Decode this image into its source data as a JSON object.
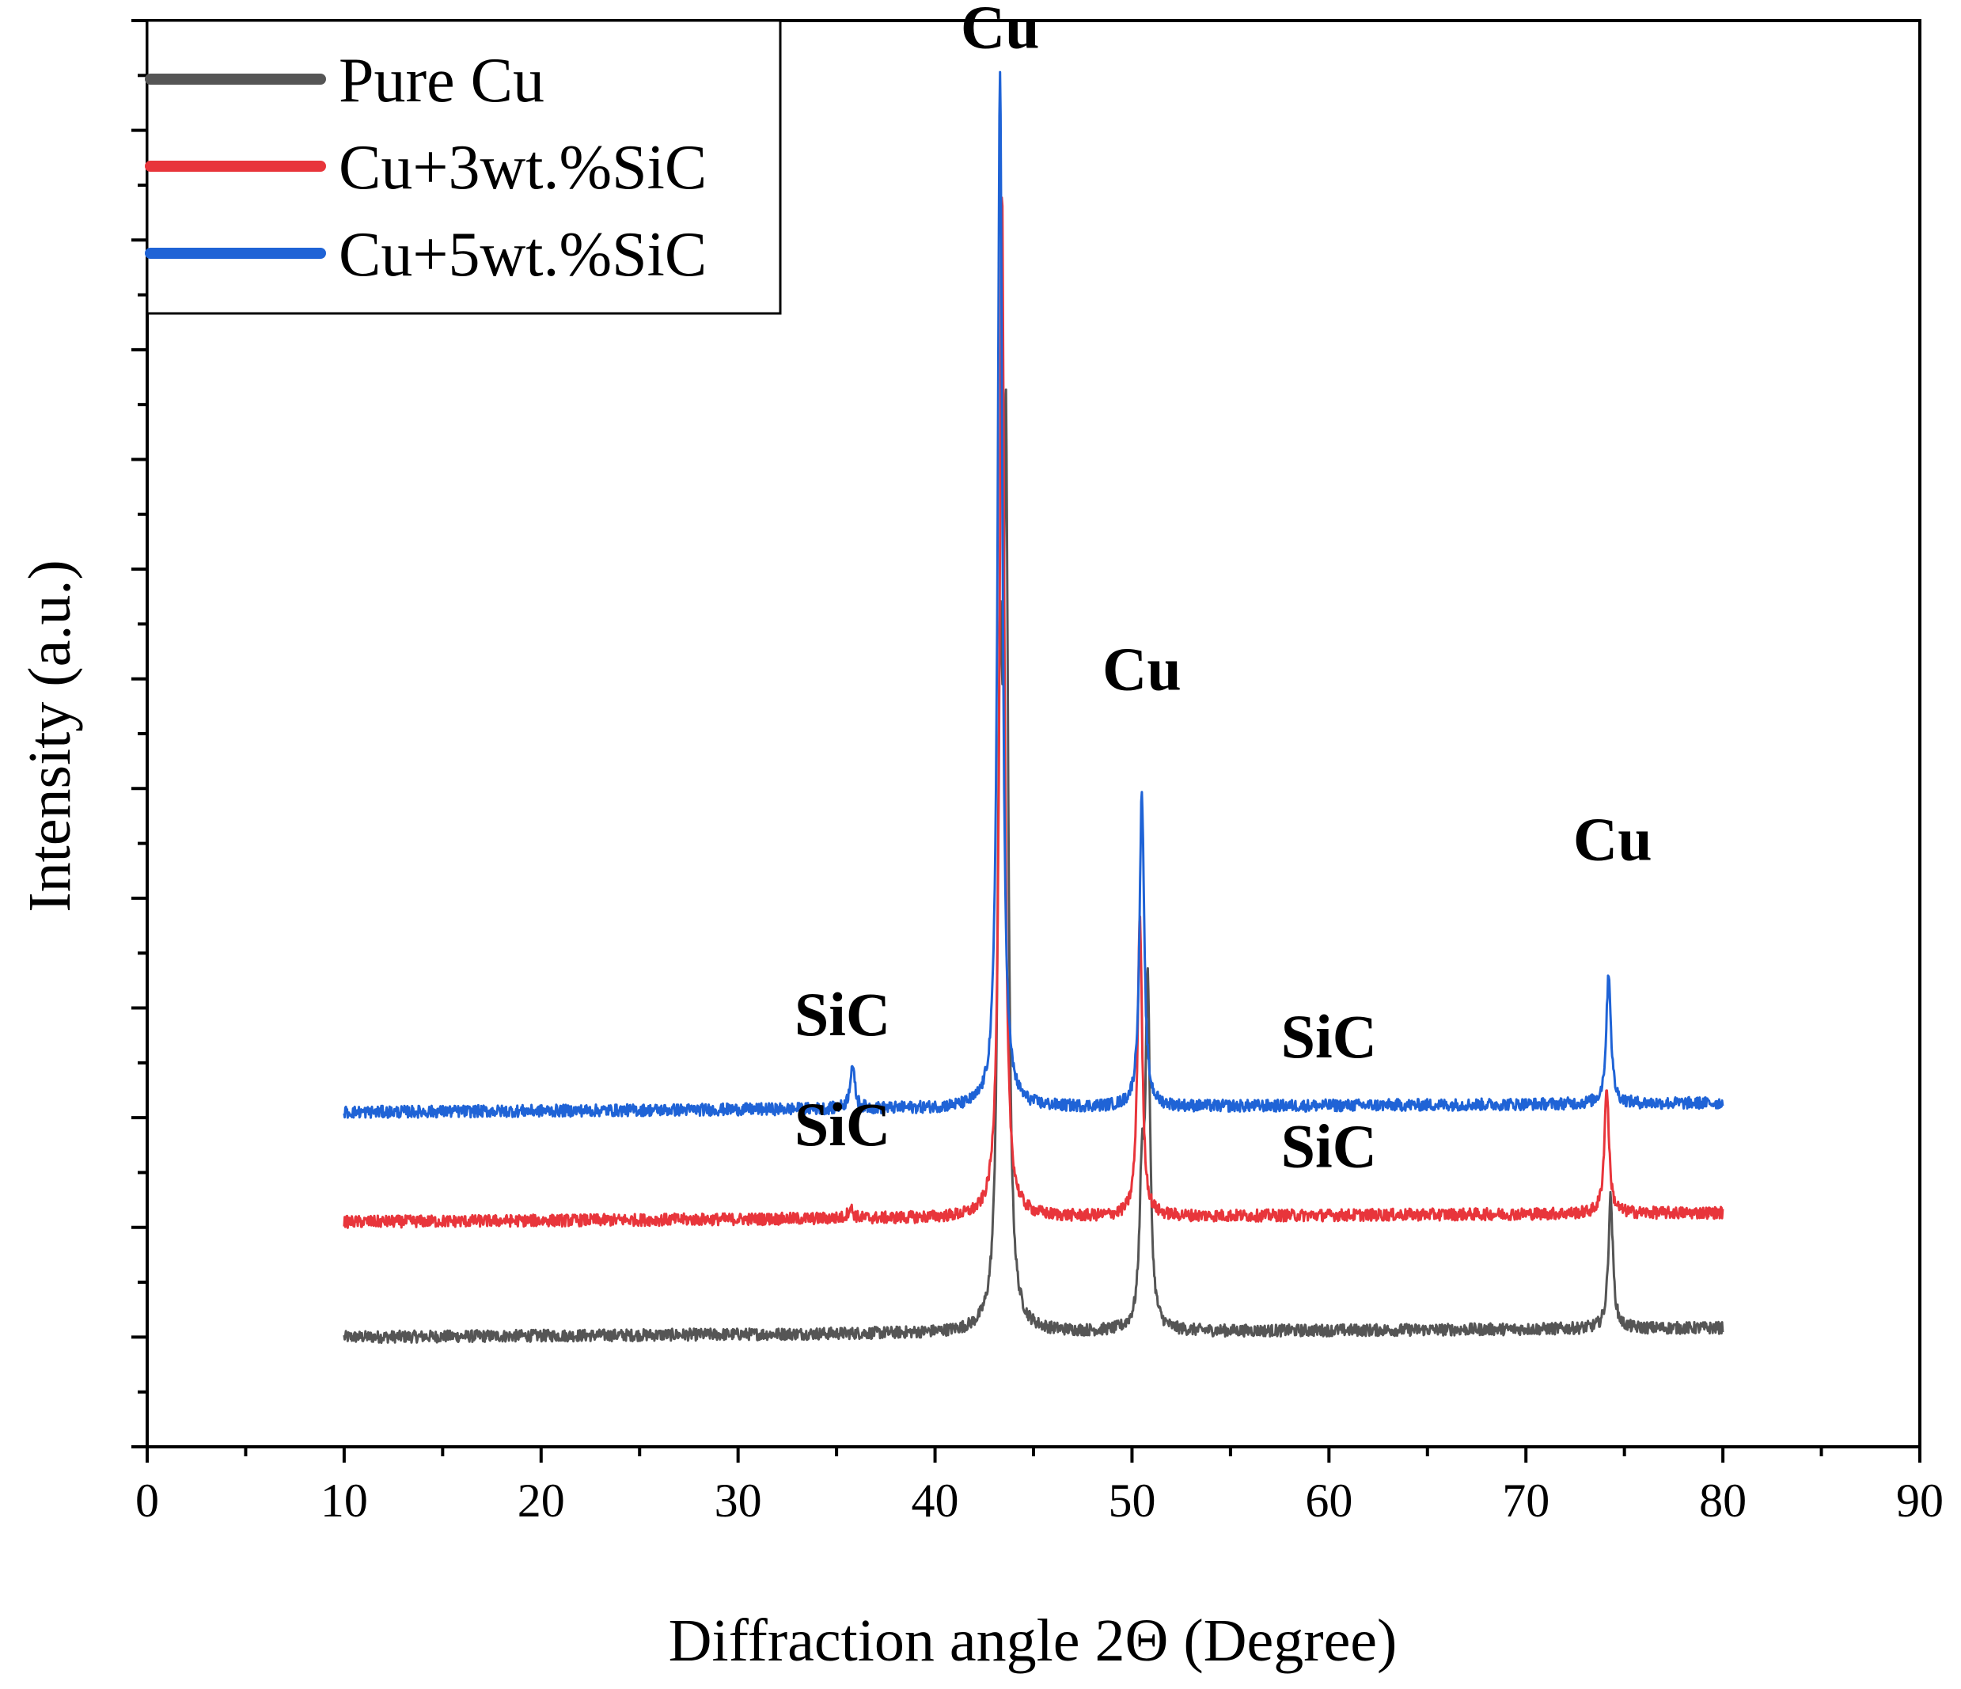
{
  "chart_data": {
    "type": "line",
    "title": "",
    "xlabel": "Diffraction angle 2Θ (Degree)",
    "ylabel": "Intensity (a.u.)",
    "xlim": [
      0,
      90
    ],
    "ylim": [
      -10,
      120
    ],
    "x_ticks": [
      0,
      10,
      20,
      30,
      40,
      50,
      60,
      70,
      80,
      90
    ],
    "x_tick_labels": [
      "0",
      "10",
      "20",
      "30",
      "40",
      "50",
      "60",
      "70",
      "80",
      "90"
    ],
    "y_tick_labels_shown": false,
    "grid": false,
    "legend_position": "top-left",
    "series": [
      {
        "name": "Pure Cu",
        "color": "#555555",
        "baseline": 0,
        "peaks": [
          {
            "x": 43.3,
            "y": 53
          },
          {
            "x": 43.6,
            "y": 76
          },
          {
            "x": 50.5,
            "y": 12
          },
          {
            "x": 50.8,
            "y": 31
          },
          {
            "x": 74.3,
            "y": 12
          }
        ]
      },
      {
        "name": "Cu+3wt.%SiC",
        "color": "#e8353b",
        "baseline": 10.5,
        "peaks": [
          {
            "x": 35.7,
            "y": 11.5
          },
          {
            "x": 43.4,
            "y": 104
          },
          {
            "x": 50.4,
            "y": 38
          },
          {
            "x": 74.1,
            "y": 22
          }
        ]
      },
      {
        "name": "Cu+5wt.%SiC",
        "color": "#1f63d6",
        "baseline": 20.5,
        "peaks": [
          {
            "x": 35.8,
            "y": 24.5
          },
          {
            "x": 43.3,
            "y": 115
          },
          {
            "x": 50.5,
            "y": 49
          },
          {
            "x": 74.2,
            "y": 32.5
          }
        ]
      }
    ],
    "annotations": [
      {
        "text": "Cu",
        "x": 43.3,
        "y": 117.5
      },
      {
        "text": "Cu",
        "x": 50.5,
        "y": 59
      },
      {
        "text": "Cu",
        "x": 74.4,
        "y": 43.5
      },
      {
        "text": "SiC",
        "x": 35.3,
        "y": 27.5
      },
      {
        "text": "SiC",
        "x": 60.0,
        "y": 25.5
      },
      {
        "text": "SiC",
        "x": 35.3,
        "y": 17.5
      },
      {
        "text": "SiC",
        "x": 60.0,
        "y": 15.5
      }
    ]
  }
}
